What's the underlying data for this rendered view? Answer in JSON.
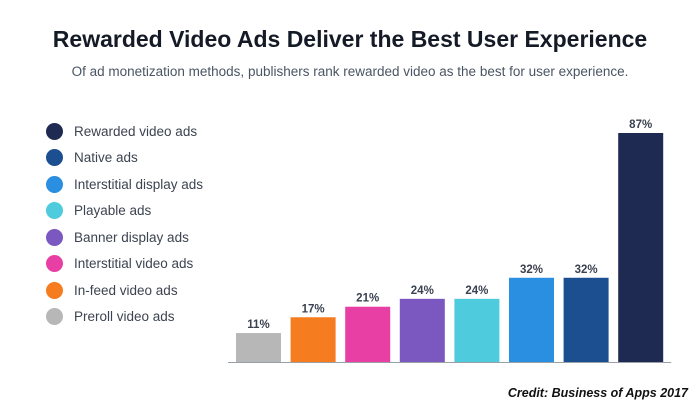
{
  "title": "Rewarded Video Ads Deliver the Best User Experience",
  "subtitle": "Of ad monetization methods, publishers rank rewarded video as the best for user experience.",
  "credit": "Credit: Business of Apps 2017",
  "legend": [
    {
      "label": "Rewarded video ads",
      "color": "#1e2a52"
    },
    {
      "label": "Native ads",
      "color": "#1c4f8f"
    },
    {
      "label": "Interstitial display ads",
      "color": "#2a8fe0"
    },
    {
      "label": "Playable ads",
      "color": "#4ecbdc"
    },
    {
      "label": "Banner display ads",
      "color": "#7b57c0"
    },
    {
      "label": "Interstitial video ads",
      "color": "#e83fa5"
    },
    {
      "label": "In-feed video ads",
      "color": "#f57c1f"
    },
    {
      "label": "Preroll video ads",
      "color": "#b7b7b7"
    }
  ],
  "chart_data": {
    "type": "bar",
    "categories": [
      "Preroll video ads",
      "In-feed video ads",
      "Interstitial video ads",
      "Banner display ads",
      "Playable ads",
      "Interstitial display ads",
      "Native ads",
      "Rewarded video ads"
    ],
    "values": [
      11,
      17,
      21,
      24,
      24,
      32,
      32,
      87
    ],
    "data_labels": [
      "11%",
      "17%",
      "21%",
      "24%",
      "24%",
      "32%",
      "32%",
      "87%"
    ],
    "colors": [
      "#b7b7b7",
      "#f57c1f",
      "#e83fa5",
      "#7b57c0",
      "#4ecbdc",
      "#2a8fe0",
      "#1c4f8f",
      "#1e2a52"
    ],
    "unit": "%",
    "ylim": [
      0,
      87
    ],
    "grid": false,
    "legend_position": "left",
    "xlabel": "",
    "ylabel": ""
  }
}
